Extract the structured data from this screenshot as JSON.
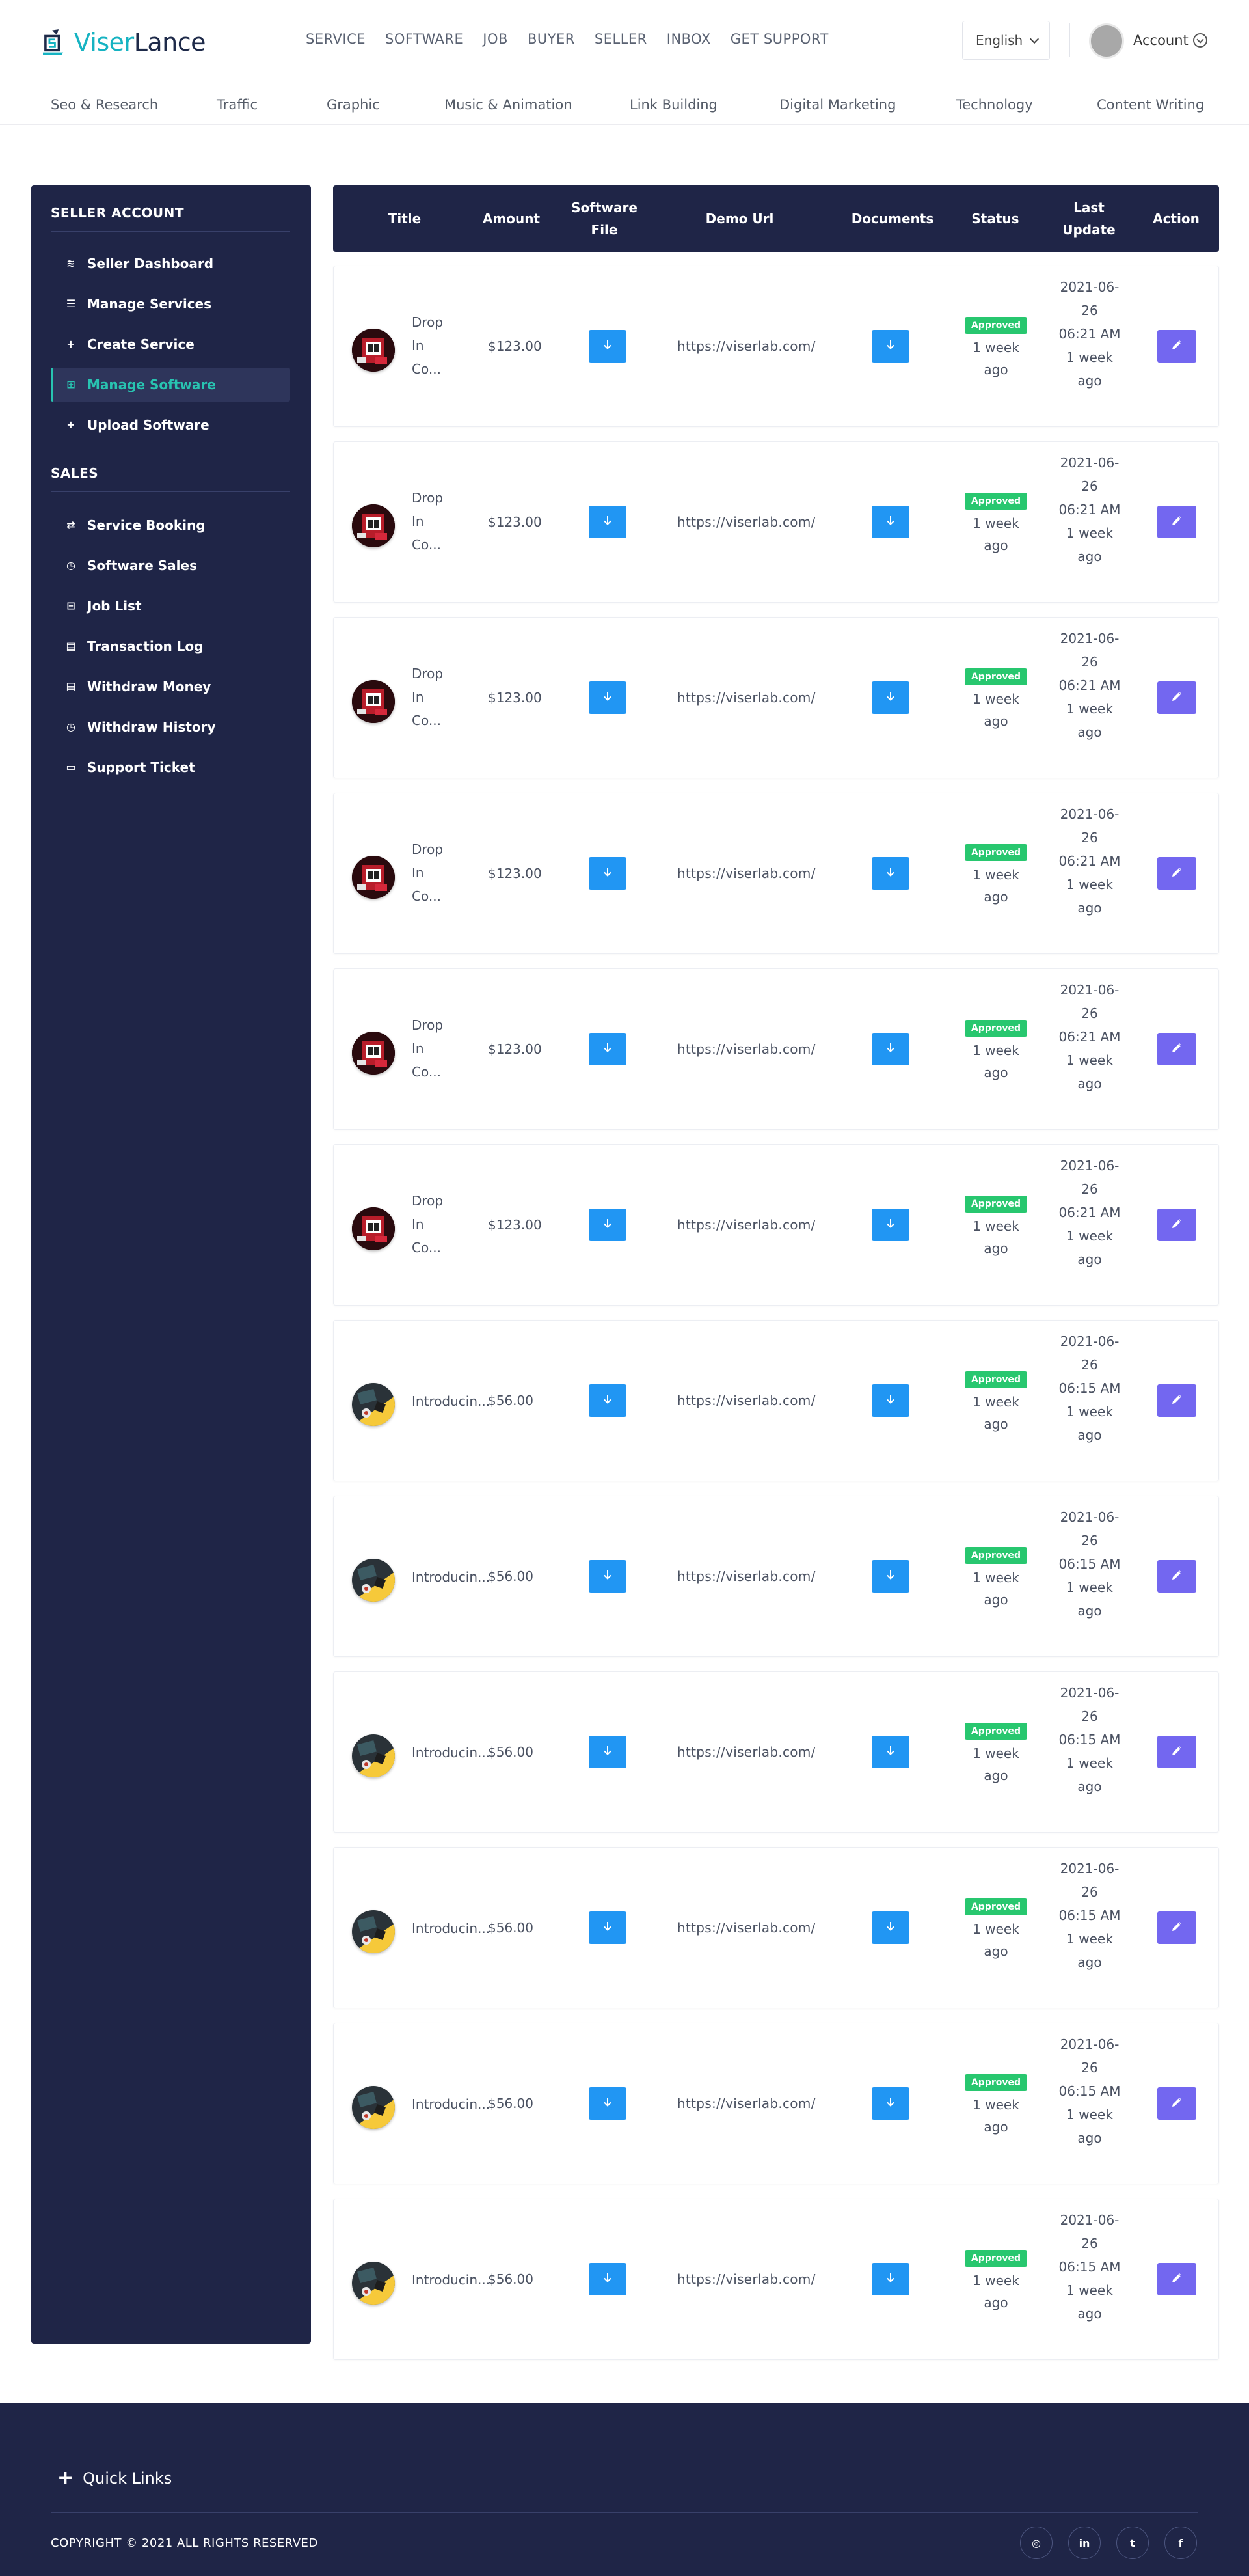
{
  "brand": {
    "part1": "Viser",
    "part2": "Lance"
  },
  "nav": [
    "SERVICE",
    "SOFTWARE",
    "JOB",
    "BUYER",
    "SELLER",
    "INBOX",
    "GET SUPPORT"
  ],
  "language": "English",
  "account": {
    "label": "Account"
  },
  "categories": [
    "Seo & Research",
    "Traffic",
    "Graphic",
    "Music & Animation",
    "Link Building",
    "Digital Marketing",
    "Technology",
    "Content Writing"
  ],
  "sidebar": {
    "section1": "SELLER ACCOUNT",
    "section2": "SALES",
    "items": [
      {
        "label": "Seller Dashboard",
        "icon": "layers-icon"
      },
      {
        "label": "Manage Services",
        "icon": "list-icon"
      },
      {
        "label": "Create Service",
        "icon": "plus-icon"
      },
      {
        "label": "Manage Software",
        "icon": "grid-icon"
      },
      {
        "label": "Upload Software",
        "icon": "plus-icon"
      },
      {
        "label": "Service Booking",
        "icon": "exchange-icon"
      },
      {
        "label": "Software Sales",
        "icon": "history-icon"
      },
      {
        "label": "Job List",
        "icon": "list-box-icon"
      },
      {
        "label": "Transaction Log",
        "icon": "money-icon"
      },
      {
        "label": "Withdraw Money",
        "icon": "money-icon"
      },
      {
        "label": "Withdraw History",
        "icon": "history-icon"
      },
      {
        "label": "Support Ticket",
        "icon": "ticket-icon"
      }
    ],
    "active": "Manage Software",
    "accent": "#28c4b1"
  },
  "table": {
    "headers": [
      "Title",
      "Amount",
      "Software File",
      "Demo Url",
      "Documents",
      "Status",
      "Last Update",
      "Action"
    ],
    "rows": [
      {
        "title": "Drop In Co...",
        "amount": "$123.00",
        "demo": "https://viserlab.com/",
        "status": "Approved",
        "status_ago": "1 week ago",
        "date": "2021-06-26",
        "time": "06:21 AM",
        "ago": "1 week ago",
        "thumb": "red"
      },
      {
        "title": "Drop In Co...",
        "amount": "$123.00",
        "demo": "https://viserlab.com/",
        "status": "Approved",
        "status_ago": "1 week ago",
        "date": "2021-06-26",
        "time": "06:21 AM",
        "ago": "1 week ago",
        "thumb": "red"
      },
      {
        "title": "Drop In Co...",
        "amount": "$123.00",
        "demo": "https://viserlab.com/",
        "status": "Approved",
        "status_ago": "1 week ago",
        "date": "2021-06-26",
        "time": "06:21 AM",
        "ago": "1 week ago",
        "thumb": "red"
      },
      {
        "title": "Drop In Co...",
        "amount": "$123.00",
        "demo": "https://viserlab.com/",
        "status": "Approved",
        "status_ago": "1 week ago",
        "date": "2021-06-26",
        "time": "06:21 AM",
        "ago": "1 week ago",
        "thumb": "red"
      },
      {
        "title": "Drop In Co...",
        "amount": "$123.00",
        "demo": "https://viserlab.com/",
        "status": "Approved",
        "status_ago": "1 week ago",
        "date": "2021-06-26",
        "time": "06:21 AM",
        "ago": "1 week ago",
        "thumb": "red"
      },
      {
        "title": "Drop In Co...",
        "amount": "$123.00",
        "demo": "https://viserlab.com/",
        "status": "Approved",
        "status_ago": "1 week ago",
        "date": "2021-06-26",
        "time": "06:21 AM",
        "ago": "1 week ago",
        "thumb": "red"
      },
      {
        "title": "Introducin...",
        "amount": "$56.00",
        "demo": "https://viserlab.com/",
        "status": "Approved",
        "status_ago": "1 week ago",
        "date": "2021-06-26",
        "time": "06:15 AM",
        "ago": "1 week ago",
        "thumb": "yellow"
      },
      {
        "title": "Introducin...",
        "amount": "$56.00",
        "demo": "https://viserlab.com/",
        "status": "Approved",
        "status_ago": "1 week ago",
        "date": "2021-06-26",
        "time": "06:15 AM",
        "ago": "1 week ago",
        "thumb": "yellow"
      },
      {
        "title": "Introducin...",
        "amount": "$56.00",
        "demo": "https://viserlab.com/",
        "status": "Approved",
        "status_ago": "1 week ago",
        "date": "2021-06-26",
        "time": "06:15 AM",
        "ago": "1 week ago",
        "thumb": "yellow"
      },
      {
        "title": "Introducin...",
        "amount": "$56.00",
        "demo": "https://viserlab.com/",
        "status": "Approved",
        "status_ago": "1 week ago",
        "date": "2021-06-26",
        "time": "06:15 AM",
        "ago": "1 week ago",
        "thumb": "yellow"
      },
      {
        "title": "Introducin...",
        "amount": "$56.00",
        "demo": "https://viserlab.com/",
        "status": "Approved",
        "status_ago": "1 week ago",
        "date": "2021-06-26",
        "time": "06:15 AM",
        "ago": "1 week ago",
        "thumb": "yellow"
      },
      {
        "title": "Introducin...",
        "amount": "$56.00",
        "demo": "https://viserlab.com/",
        "status": "Approved",
        "status_ago": "1 week ago",
        "date": "2021-06-26",
        "time": "06:15 AM",
        "ago": "1 week ago",
        "thumb": "yellow"
      }
    ]
  },
  "footer": {
    "quick_links": "Quick Links",
    "copyright": "COPYRIGHT © 2021 ALL RIGHTS RESERVED",
    "social": [
      {
        "icon": "instagram-icon",
        "glyph": "◎"
      },
      {
        "icon": "linkedin-icon",
        "glyph": "in"
      },
      {
        "icon": "twitter-icon",
        "glyph": "t"
      },
      {
        "icon": "facebook-icon",
        "glyph": "f"
      }
    ]
  },
  "colors": {
    "navy": "#1f2547",
    "download": "#2196f3",
    "edit": "#7367f0",
    "approved": "#28c76f"
  }
}
